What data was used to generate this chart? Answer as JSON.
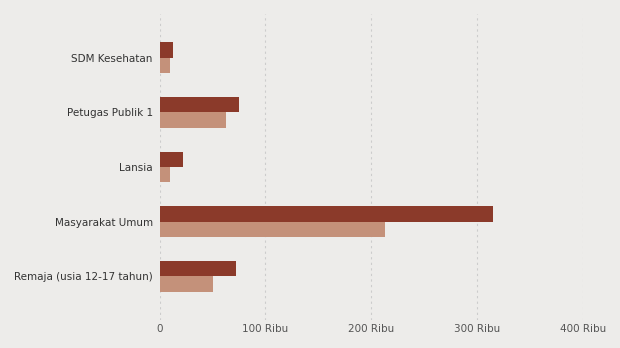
{
  "categories": [
    "SDM Kesehatan",
    "Petugas Publik 1",
    "Lansia",
    "Masyarakat Umum",
    "Remaja (usia 12-17 tahun)"
  ],
  "values_top": [
    13000,
    75000,
    22000,
    315000,
    72000
  ],
  "values_bottom": [
    10000,
    63000,
    10000,
    213000,
    50000
  ],
  "color_top": "#8B3A2A",
  "color_bottom": "#C4917A",
  "background_color": "#EDECEA",
  "bar_height": 0.28,
  "xlim": [
    0,
    400000
  ],
  "xticks": [
    0,
    100000,
    200000,
    300000,
    400000
  ],
  "xtick_labels": [
    "0",
    "100 Ribu",
    "200 Ribu",
    "300 Ribu",
    "400 Ribu"
  ],
  "grid_color": "#CCCCCC",
  "label_fontsize": 7.5,
  "tick_fontsize": 7.5
}
